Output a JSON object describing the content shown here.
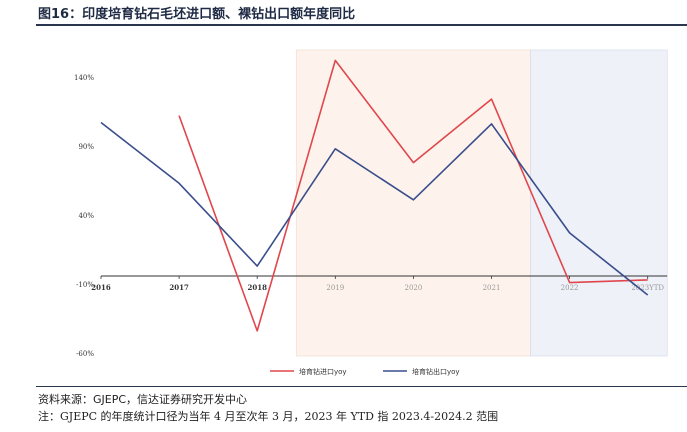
{
  "title": "图16：印度培育钻石毛坯进口额、裸钻出口额年度同比",
  "footer": {
    "source": "资料来源：GJEPC，信达证券研究开发中心",
    "note": "注：GJEPC 的年度统计口径为当年 4 月至次年 3 月，2023 年 YTD 指 2023.4-2024.2 范围"
  },
  "chart_data": {
    "type": "line",
    "title": "",
    "xlabel": "",
    "ylabel": "",
    "categories": [
      "2016",
      "2017",
      "2018",
      "2019",
      "2020",
      "2021",
      "2022",
      "2023YTD"
    ],
    "y_ticks": [
      "-60%",
      "-10%",
      "40%",
      "90%",
      "140%"
    ],
    "ylim": [
      -60,
      160
    ],
    "grid": false,
    "legend_position": "bottom",
    "shaded_regions": [
      {
        "from_index": 2.5,
        "to_index": 5.5,
        "color": "#fdf3ec"
      },
      {
        "from_index": 5.5,
        "to_index": 7.25,
        "color": "#eef1f8"
      }
    ],
    "series": [
      {
        "name": "培育钻进口yoy",
        "color": "#e0474c",
        "values": [
          null,
          112,
          -44,
          152,
          78,
          124,
          -9,
          -7
        ]
      },
      {
        "name": "培育钻出口yoy",
        "color": "#3a4e8c",
        "values": [
          107,
          63,
          3,
          88,
          51,
          106,
          27,
          -18
        ]
      }
    ]
  }
}
